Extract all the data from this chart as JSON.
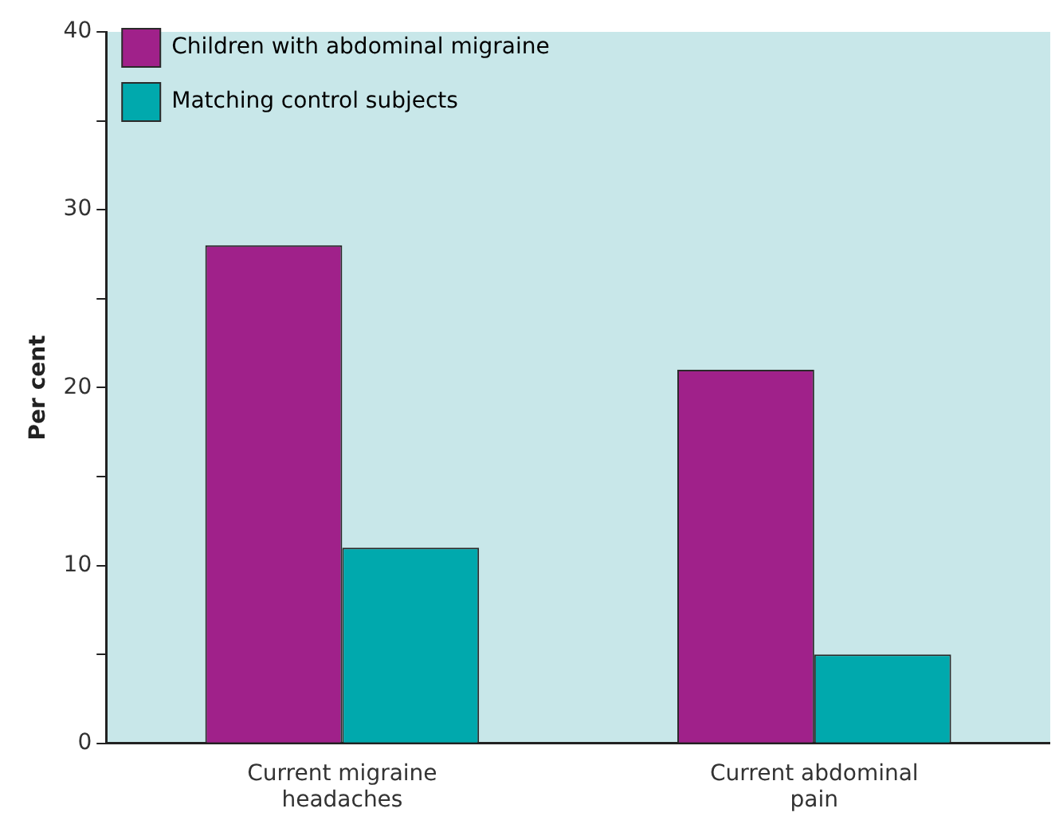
{
  "chart_data": {
    "type": "bar",
    "ylabel": "Per cent",
    "categories": [
      "Current migraine headaches",
      "Current abdominal pain"
    ],
    "series": [
      {
        "name": "Children with abdominal migraine",
        "color": "#a0218a",
        "values": [
          28,
          21
        ]
      },
      {
        "name": "Matching control subjects",
        "color": "#00a9ad",
        "values": [
          11,
          5
        ]
      }
    ],
    "ylim": [
      0,
      40
    ],
    "yticks": [
      0,
      {
        "value": 5,
        "label": null
      },
      10,
      {
        "value": 15,
        "label": null
      },
      20,
      {
        "value": 25,
        "label": null
      },
      30,
      {
        "value": 35,
        "label": null
      },
      40
    ],
    "grid": false,
    "legend": "top left"
  }
}
